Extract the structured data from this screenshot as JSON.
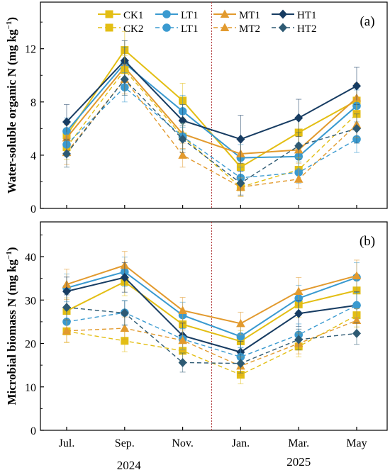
{
  "chart_data": [
    {
      "type": "line",
      "panel_label": "(a)",
      "ylabel": "Water-soluble organic N (mg kg⁻¹)",
      "ylim": [
        0,
        15.5
      ],
      "yticks": [
        0,
        4,
        8,
        12
      ],
      "categories": [
        "Jul.",
        "Sep.",
        "Nov.",
        "Jan.",
        "Mar.",
        "May"
      ],
      "divider_after_category": 2,
      "series": [
        {
          "name": "CK1",
          "color": "#E3BE13",
          "style": "solid",
          "marker": "square",
          "values": [
            5.5,
            11.9,
            8.1,
            3.1,
            5.7,
            8.1
          ],
          "err": [
            1.1,
            1.4,
            1.3,
            1.0,
            1.2,
            1.2
          ]
        },
        {
          "name": "LT1",
          "color": "#3A9AD0",
          "style": "solid",
          "marker": "circle",
          "values": [
            5.8,
            10.9,
            7.3,
            3.8,
            3.9,
            7.7
          ],
          "err": [
            1.0,
            1.2,
            1.2,
            1.0,
            1.0,
            1.2
          ]
        },
        {
          "name": "MT1",
          "color": "#E29A2E",
          "style": "solid",
          "marker": "triangle",
          "values": [
            5.3,
            10.6,
            5.6,
            4.1,
            4.4,
            8.3
          ],
          "err": [
            1.0,
            1.3,
            1.1,
            1.0,
            1.0,
            1.1
          ]
        },
        {
          "name": "HT1",
          "color": "#173C62",
          "style": "solid",
          "marker": "diamond",
          "values": [
            6.5,
            11.1,
            6.6,
            5.2,
            6.8,
            9.2
          ],
          "err": [
            1.3,
            1.5,
            1.2,
            1.8,
            1.4,
            1.4
          ]
        },
        {
          "name": "CK2",
          "color": "#E3BE13",
          "style": "dashed",
          "marker": "square",
          "values": [
            4.6,
            10.4,
            5.4,
            1.6,
            2.9,
            7.1
          ],
          "err": [
            0.9,
            1.1,
            1.0,
            0.7,
            0.9,
            1.0
          ]
        },
        {
          "name": "LT1",
          "color": "#3A9AD0",
          "style": "dashed",
          "marker": "circle",
          "values": [
            4.8,
            9.1,
            5.4,
            2.3,
            2.7,
            5.2
          ],
          "err": [
            0.9,
            1.1,
            1.0,
            0.8,
            0.8,
            1.0
          ]
        },
        {
          "name": "MT2",
          "color": "#E29A2E",
          "style": "dashed",
          "marker": "triangle",
          "values": [
            4.2,
            9.7,
            4.0,
            1.6,
            2.2,
            6.3
          ],
          "err": [
            0.9,
            1.1,
            0.9,
            0.7,
            0.7,
            1.0
          ]
        },
        {
          "name": "HT2",
          "color": "#2E5A73",
          "style": "dashed",
          "marker": "diamond",
          "values": [
            4.1,
            9.7,
            5.2,
            1.9,
            4.7,
            6.0
          ],
          "err": [
            1.0,
            1.2,
            1.0,
            0.9,
            1.0,
            1.1
          ]
        }
      ]
    },
    {
      "type": "line",
      "panel_label": "(b)",
      "ylabel": "Microbial biomass N (mg kg⁻¹)",
      "ylim": [
        0,
        48
      ],
      "yticks": [
        0,
        10,
        20,
        30,
        40
      ],
      "categories": [
        "Jul.",
        "Sep.",
        "Nov.",
        "Jan.",
        "Mar.",
        "May"
      ],
      "year_labels": [
        "2024",
        "2025"
      ],
      "divider_after_category": 2,
      "series": [
        {
          "name": "CK1",
          "color": "#E3BE13",
          "style": "solid",
          "marker": "square",
          "values": [
            27.5,
            34.2,
            24.4,
            20.5,
            29.0,
            32.2
          ],
          "err": [
            3.0,
            3.2,
            2.8,
            2.5,
            3.0,
            3.2
          ]
        },
        {
          "name": "LT1",
          "color": "#3A9AD0",
          "style": "solid",
          "marker": "circle",
          "values": [
            32.8,
            36.5,
            26.5,
            21.6,
            30.4,
            35.2
          ],
          "err": [
            3.2,
            3.4,
            3.0,
            2.6,
            3.0,
            3.4
          ]
        },
        {
          "name": "MT1",
          "color": "#E29A2E",
          "style": "solid",
          "marker": "triangle",
          "values": [
            33.6,
            38.0,
            27.6,
            24.6,
            32.0,
            35.6
          ],
          "err": [
            3.5,
            3.2,
            3.0,
            2.6,
            3.2,
            3.6
          ]
        },
        {
          "name": "HT1",
          "color": "#173C62",
          "style": "solid",
          "marker": "diamond",
          "values": [
            32.0,
            35.2,
            21.8,
            18.0,
            26.9,
            28.8
          ],
          "err": [
            3.3,
            3.4,
            2.9,
            2.5,
            3.0,
            3.1
          ]
        },
        {
          "name": "CK2",
          "color": "#E3BE13",
          "style": "dashed",
          "marker": "square",
          "values": [
            22.8,
            20.6,
            18.3,
            12.8,
            19.3,
            26.5
          ],
          "err": [
            2.6,
            2.5,
            2.3,
            2.1,
            2.4,
            2.7
          ]
        },
        {
          "name": "LT1",
          "color": "#3A9AD0",
          "style": "dashed",
          "marker": "circle",
          "values": [
            25.0,
            27.1,
            21.0,
            16.9,
            22.0,
            28.8
          ],
          "err": [
            2.7,
            2.8,
            2.4,
            2.2,
            2.5,
            2.9
          ]
        },
        {
          "name": "MT2",
          "color": "#E29A2E",
          "style": "dashed",
          "marker": "triangle",
          "values": [
            22.9,
            23.5,
            20.7,
            14.8,
            20.0,
            25.3
          ],
          "err": [
            2.6,
            2.6,
            2.4,
            2.1,
            2.4,
            2.7
          ]
        },
        {
          "name": "HT2",
          "color": "#2E5A73",
          "style": "dashed",
          "marker": "diamond",
          "values": [
            28.3,
            27.0,
            15.6,
            15.4,
            20.9,
            22.3
          ],
          "err": [
            2.9,
            2.8,
            2.2,
            2.2,
            2.4,
            2.5
          ]
        }
      ]
    }
  ]
}
